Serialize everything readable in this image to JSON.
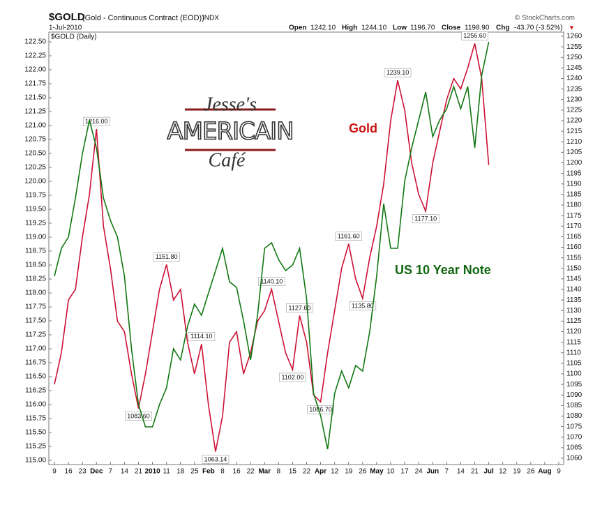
{
  "header": {
    "symbol": "$GOLD",
    "description": "(Gold - Continuous Contract (EOD))",
    "exchange": "INDX",
    "date": "1-Jul-2010",
    "source": "© StockCharts.com",
    "open_label": "Open",
    "open": "1242.10",
    "high_label": "High",
    "high": "1244.10",
    "low_label": "Low",
    "low": "1196.70",
    "close_label": "Close",
    "close": "1198.90",
    "chg_label": "Chg",
    "chg": "-43.70 (-3.52%)",
    "chg_arrow": "▼"
  },
  "logo": {
    "line1": "Jesse's",
    "line2": "AMERICAIN",
    "line3": "Café"
  },
  "chart_data": {
    "type": "line",
    "legend": "$GOLD (Daily)",
    "grid": false,
    "annotations": [
      {
        "text": "Gold",
        "color": "#cc1111"
      },
      {
        "text": "US 10 Year Note",
        "color": "#116611"
      }
    ],
    "categories": [
      "9",
      null,
      "16",
      null,
      "23",
      null,
      "Dec",
      null,
      "7",
      null,
      "14",
      null,
      "21",
      null,
      "2010",
      null,
      "11",
      null,
      "18",
      null,
      "25",
      null,
      "Feb",
      null,
      "8",
      null,
      "16",
      null,
      "22",
      null,
      "Mar",
      null,
      "8",
      null,
      "15",
      null,
      "22",
      null,
      "Apr",
      null,
      "12",
      null,
      "19",
      null,
      "26",
      null,
      "May",
      null,
      "10",
      null,
      "17",
      null,
      "24",
      null,
      "Jun",
      null,
      "7",
      null,
      "14",
      null,
      "21",
      null,
      "Jul",
      null,
      "12",
      null,
      "19",
      null,
      "26",
      null,
      "Aug",
      null,
      "9"
    ],
    "series": [
      {
        "name": "Gold",
        "color": "#cc1133",
        "axis": "y2",
        "values": [
          1095,
          1110,
          1135,
          1140,
          1165,
          1185,
          1216,
          1170,
          1150,
          1125,
          1120,
          1100,
          1083.6,
          1100,
          1120,
          1140,
          1151.8,
          1135,
          1140,
          1115,
          1100,
          1114.1,
          1085,
          1063.14,
          1080,
          1115,
          1120,
          1100,
          1110,
          1125,
          1130,
          1140.1,
          1125,
          1110,
          1102,
          1127.6,
          1115,
          1090,
          1086.7,
          1110,
          1130,
          1150,
          1161.6,
          1145,
          1135.8,
          1155,
          1170,
          1190,
          1220,
          1239.1,
          1225,
          1200,
          1185,
          1177.1,
          1200,
          1215,
          1230,
          1240,
          1235,
          1245,
          1256.6,
          1240,
          1198.9,
          null,
          null,
          null,
          null,
          null,
          null,
          null,
          null,
          null,
          null
        ],
        "value_labels": [
          null,
          null,
          null,
          null,
          null,
          null,
          "1216.00",
          null,
          null,
          null,
          null,
          null,
          "1083.60",
          null,
          null,
          null,
          "1151.80",
          null,
          null,
          null,
          null,
          "1114.10",
          null,
          "1063.14",
          null,
          null,
          null,
          null,
          null,
          null,
          null,
          "1140.10",
          null,
          null,
          "1102.00",
          "1127.60",
          null,
          null,
          "1086.70",
          null,
          null,
          null,
          "1161.60",
          null,
          "1135.80",
          null,
          null,
          null,
          null,
          "1239.10",
          null,
          null,
          null,
          "1177.10",
          null,
          null,
          null,
          null,
          null,
          null,
          "1256.60",
          null,
          null,
          null,
          null,
          null,
          null,
          null,
          null,
          null,
          null,
          null,
          null
        ]
      },
      {
        "name": "US 10 Year Note",
        "color": "#117711",
        "axis": "y",
        "values": [
          118.3,
          118.8,
          119.0,
          119.7,
          120.5,
          121.1,
          120.6,
          119.7,
          119.3,
          119.0,
          118.3,
          117.0,
          116.0,
          115.6,
          115.6,
          116.0,
          116.3,
          117.0,
          116.8,
          117.4,
          117.8,
          117.6,
          118.0,
          118.4,
          118.8,
          118.2,
          118.1,
          117.5,
          116.8,
          117.6,
          118.8,
          118.9,
          118.6,
          118.4,
          118.5,
          118.8,
          117.9,
          116.2,
          115.8,
          115.2,
          116.2,
          116.6,
          116.3,
          116.7,
          116.6,
          117.3,
          118.3,
          119.6,
          118.8,
          118.8,
          120.0,
          120.6,
          121.1,
          121.6,
          120.8,
          121.1,
          121.3,
          121.7,
          121.3,
          121.7,
          120.6,
          121.9,
          122.5,
          null,
          null,
          null,
          null,
          null,
          null,
          null,
          null,
          null,
          null
        ]
      }
    ],
    "ylim": [
      115,
      122.5
    ],
    "yticks": [
      {
        "value": 115,
        "label": "115.00"
      },
      {
        "value": 115.25,
        "label": "115.25"
      },
      {
        "value": 115.5,
        "label": "115.50"
      },
      {
        "value": 115.75,
        "label": "115.75"
      },
      {
        "value": 116,
        "label": "116.00"
      },
      {
        "value": 116.25,
        "label": "116.25"
      },
      {
        "value": 116.5,
        "label": "116.50"
      },
      {
        "value": 116.75,
        "label": "116.75"
      },
      {
        "value": 117,
        "label": "117.00"
      },
      {
        "value": 117.25,
        "label": "117.25"
      },
      {
        "value": 117.5,
        "label": "117.50"
      },
      {
        "value": 117.75,
        "label": "117.75"
      },
      {
        "value": 118,
        "label": "118.00"
      },
      {
        "value": 118.25,
        "label": "118.25"
      },
      {
        "value": 118.5,
        "label": "118.50"
      },
      {
        "value": 118.75,
        "label": "118.75"
      },
      {
        "value": 119,
        "label": "119.00"
      },
      {
        "value": 119.25,
        "label": "119.25"
      },
      {
        "value": 119.5,
        "label": "119.50"
      },
      {
        "value": 119.75,
        "label": "119.75"
      },
      {
        "value": 120,
        "label": "120.00"
      },
      {
        "value": 120.25,
        "label": "120.25"
      },
      {
        "value": 120.5,
        "label": "120.50"
      },
      {
        "value": 120.75,
        "label": "120.75"
      },
      {
        "value": 121,
        "label": "121.00"
      },
      {
        "value": 121.25,
        "label": "121.25"
      },
      {
        "value": 121.5,
        "label": "121.50"
      },
      {
        "value": 121.75,
        "label": "121.75"
      },
      {
        "value": 122,
        "label": "122.00"
      },
      {
        "value": 122.25,
        "label": "122.25"
      },
      {
        "value": 122.5,
        "label": "122.50"
      }
    ],
    "y2lim": [
      1060,
      1260
    ],
    "y2ticks": [
      1060,
      1065,
      1070,
      1075,
      1080,
      1085,
      1090,
      1095,
      1100,
      1105,
      1110,
      1115,
      1120,
      1125,
      1130,
      1135,
      1140,
      1145,
      1150,
      1155,
      1160,
      1165,
      1170,
      1175,
      1180,
      1185,
      1190,
      1195,
      1200,
      1205,
      1210,
      1215,
      1220,
      1225,
      1230,
      1235,
      1240,
      1245,
      1250,
      1255,
      1260
    ]
  }
}
